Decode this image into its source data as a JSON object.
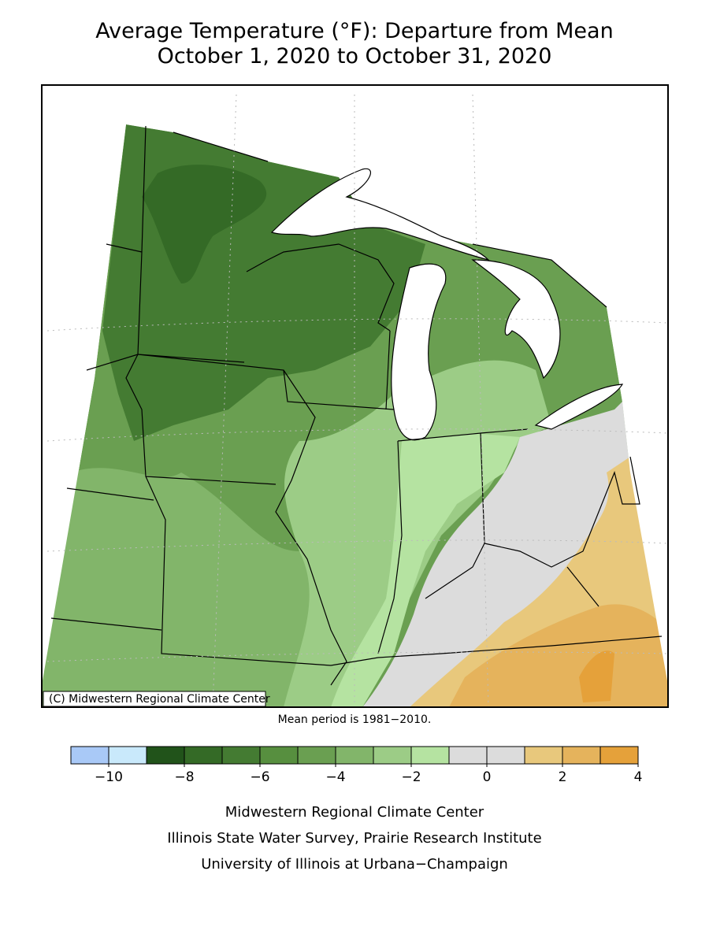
{
  "header": {
    "title": "Average Temperature (°F): Departure from Mean",
    "subtitle": "October 1, 2020 to October 31, 2020"
  },
  "map": {
    "copyright": "(C) Midwestern Regional Climate Center",
    "note": "Mean period is 1981−2010."
  },
  "legend": {
    "bins": [
      -11,
      -10,
      -9,
      -8,
      -7,
      -6,
      -5,
      -4,
      -3,
      -2,
      -1,
      0,
      1,
      2,
      3,
      4
    ],
    "colors": [
      "#a9c9f7",
      "#c9e9fb",
      "#21531a",
      "#346a26",
      "#447b32",
      "#578f3f",
      "#6a9f51",
      "#82b56a",
      "#9ccc86",
      "#b5e3a1",
      "#dcdcdc",
      "#dcdcdc",
      "#e8c87c",
      "#e5b35c",
      "#e5a13a"
    ],
    "ticks": [
      {
        "value": -10,
        "label": "−10"
      },
      {
        "value": -8,
        "label": "−8"
      },
      {
        "value": -6,
        "label": "−6"
      },
      {
        "value": -4,
        "label": "−4"
      },
      {
        "value": -2,
        "label": "−2"
      },
      0,
      2,
      4
    ]
  },
  "footer": {
    "lines": [
      "Midwestern Regional Climate Center",
      "Illinois State Water Survey, Prairie Research Institute",
      "University of Illinois at Urbana−Champaign"
    ]
  }
}
